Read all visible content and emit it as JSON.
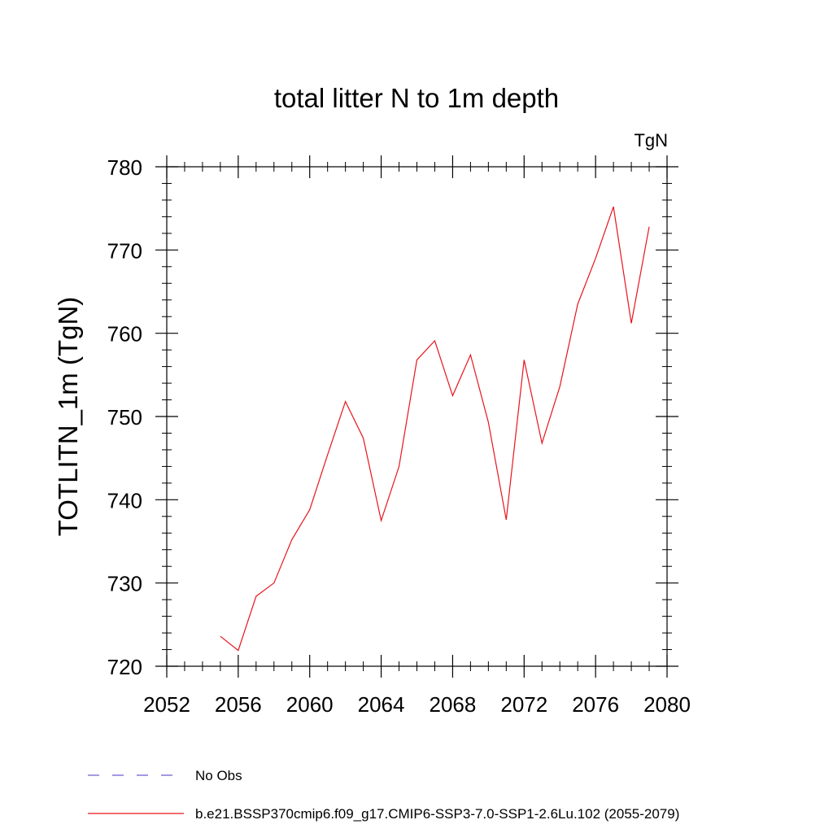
{
  "chart_data": {
    "type": "line",
    "title": "total litter N to 1m depth",
    "units": "TgN",
    "ylabel": "TOTLITN_1m  (TgN)",
    "xlabel": "",
    "xlim": [
      2052,
      2080
    ],
    "ylim": [
      720,
      780
    ],
    "x_ticks": [
      2052,
      2056,
      2060,
      2064,
      2068,
      2072,
      2076,
      2080
    ],
    "y_ticks": [
      720,
      730,
      740,
      750,
      760,
      770,
      780
    ],
    "x_tick_labels": [
      "2052",
      "2056",
      "2060",
      "2064",
      "2068",
      "2072",
      "2076",
      "2080"
    ],
    "y_tick_labels": [
      "720",
      "730",
      "740",
      "750",
      "760",
      "770",
      "780"
    ],
    "grid": false,
    "legend_position": "bottom",
    "series": [
      {
        "name": "b.e21.BSSP370cmip6.f09_g17.CMIP6-SSP3-7.0-SSP1-2.6Lu.102 (2055-2079)",
        "color": "#e8141c",
        "style": "solid",
        "x": [
          2055,
          2056,
          2057,
          2058,
          2059,
          2060,
          2061,
          2062,
          2063,
          2064,
          2065,
          2066,
          2067,
          2068,
          2069,
          2070,
          2071,
          2072,
          2073,
          2074,
          2075,
          2076,
          2077,
          2078,
          2079
        ],
        "values": [
          723.6,
          721.9,
          728.4,
          730.0,
          735.2,
          738.8,
          745.4,
          751.8,
          747.4,
          737.5,
          744.0,
          756.8,
          759.1,
          752.5,
          757.4,
          749.3,
          737.6,
          756.8,
          746.8,
          753.6,
          763.5,
          769.0,
          775.2,
          761.2,
          772.8
        ]
      }
    ],
    "legend": [
      {
        "label": "No Obs",
        "color": "#6a5acd",
        "style": "dashed"
      },
      {
        "label": "b.e21.BSSP370cmip6.f09_g17.CMIP6-SSP3-7.0-SSP1-2.6Lu.102 (2055-2079)",
        "color": "#e8141c",
        "style": "solid"
      }
    ]
  }
}
